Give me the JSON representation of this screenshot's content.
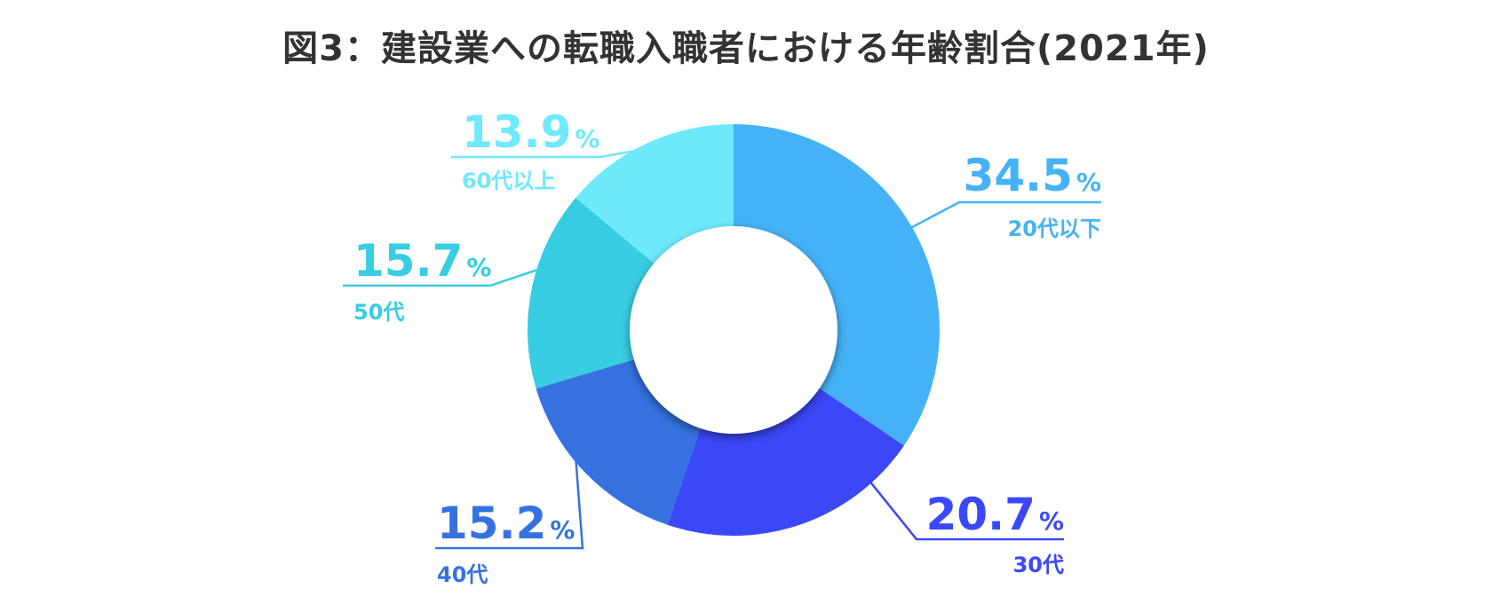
{
  "chart_data": {
    "type": "pie",
    "title": "図3：建設業への転職入職者における年齢割合(2021年)",
    "unit": "%",
    "categories": [
      "20代以下",
      "30代",
      "40代",
      "50代",
      "60代以上"
    ],
    "values": [
      34.5,
      20.7,
      15.2,
      15.7,
      13.9
    ],
    "colors": [
      "#45b2f7",
      "#3a48f8",
      "#3572e0",
      "#37cde3",
      "#6fe9fc"
    ],
    "donut": true,
    "start": "top",
    "direction": "clockwise"
  }
}
